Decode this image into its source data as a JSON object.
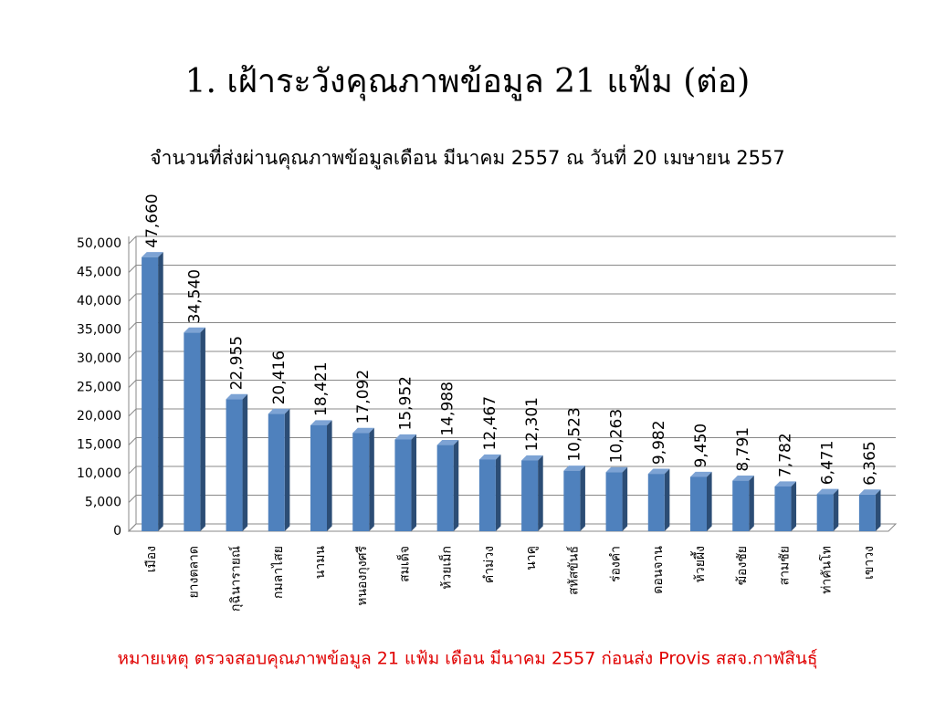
{
  "chart_data": {
    "type": "bar",
    "title": "1. เฝ้าระวังคุณภาพข้อมูล 21 แฟ้ม (ต่อ)",
    "subtitle": "จำนวนที่ส่งผ่านคุณภาพข้อมูลเดือน มีนาคม 2557 ณ วันที่ 20 เมษายน 2557",
    "note": "หมายเหตุ ตรวจสอบคุณภาพข้อมูล 21 แฟ้ม เดือน มีนาคม 2557 ก่อนส่ง Provis สสจ.กาฬสินธุ์",
    "categories": [
      "เมือง",
      "ยางตลาด",
      "กุฉินารายณ์",
      "กมลาไสย",
      "นามน",
      "หนองกุงศรี",
      "สมเด็จ",
      "ห้วยเม็ก",
      "คำม่วง",
      "นาคู",
      "สหัสขันธ์",
      "ร่องคำ",
      "ดอนจาน",
      "ห้วยผึ้ง",
      "ฆ้องชัย",
      "สามชัย",
      "ท่าคันโท",
      "เขาวง"
    ],
    "values": [
      47660,
      34540,
      22955,
      20416,
      18421,
      17092,
      15952,
      14988,
      12467,
      12301,
      10523,
      10263,
      9982,
      9450,
      8791,
      7782,
      6471,
      6365
    ],
    "value_labels": [
      "47,660",
      "34,540",
      "22,955",
      "20,416",
      "18,421",
      "17,092",
      "15,952",
      "14,988",
      "12,467",
      "12,301",
      "10,523",
      "10,263",
      "9,982",
      "9,450",
      "8,791",
      "7,782",
      "6,471",
      "6,365"
    ],
    "color": "#4f81bd",
    "ylim": [
      0,
      50000
    ],
    "yticks": [
      0,
      {
        "value": 5000,
        "label": "5,000"
      },
      {
        "value": 10000,
        "label": "10,000"
      },
      {
        "value": 15000,
        "label": "15,000"
      },
      {
        "value": 20000,
        "label": "20,000"
      },
      {
        "value": 25000,
        "label": "25,000"
      },
      {
        "value": 30000,
        "label": "30,000"
      },
      {
        "value": 35000,
        "label": "35,000"
      },
      {
        "value": 40000,
        "label": "40,000"
      },
      {
        "value": 45000,
        "label": "45,000"
      },
      {
        "value": 50000,
        "label": "50,000"
      }
    ],
    "grid": true
  }
}
